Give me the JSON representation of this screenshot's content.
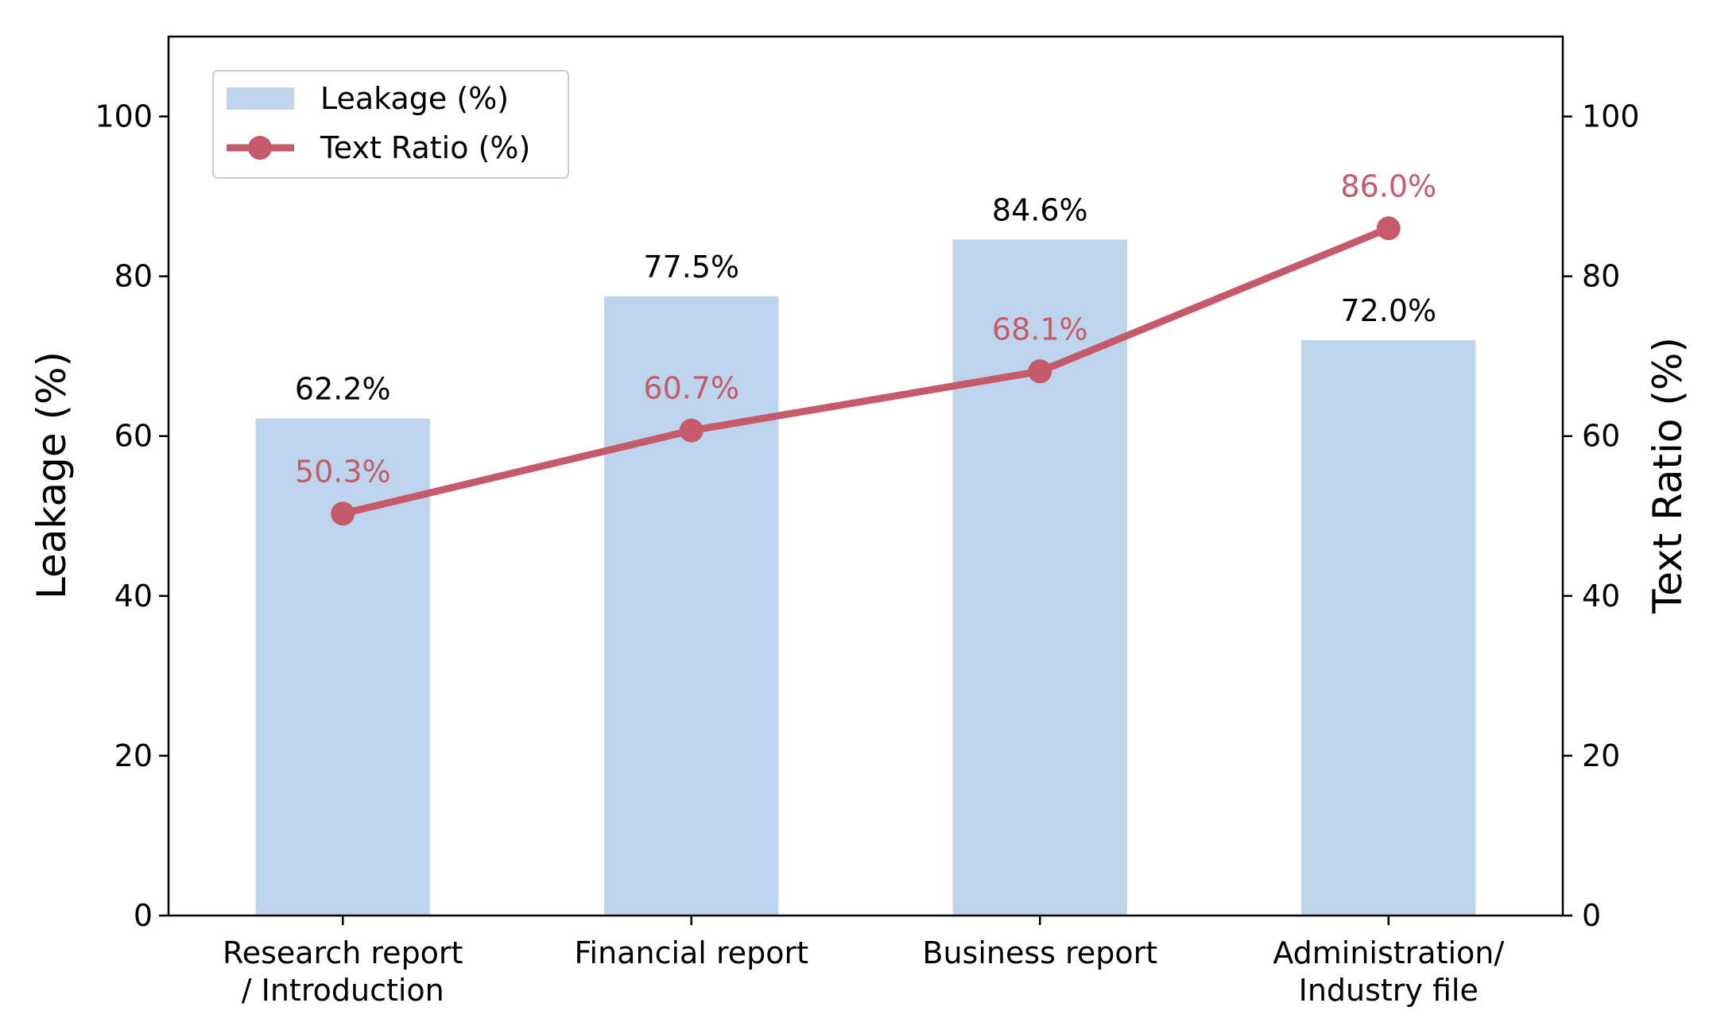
{
  "chart_data": {
    "type": "bar+line",
    "categories": [
      [
        "Research report",
        "/ Introduction"
      ],
      [
        "Financial report"
      ],
      [
        "Business report"
      ],
      [
        "Administration/",
        "Industry file"
      ]
    ],
    "series": [
      {
        "name": "Leakage (%)",
        "kind": "bar",
        "axis": "left",
        "values": [
          62.2,
          77.5,
          84.6,
          72.0
        ],
        "labels": [
          "62.2%",
          "77.5%",
          "84.6%",
          "72.0%"
        ]
      },
      {
        "name": "Text Ratio (%)",
        "kind": "line",
        "axis": "right",
        "values": [
          50.3,
          60.7,
          68.1,
          86.0
        ],
        "labels": [
          "50.3%",
          "60.7%",
          "68.1%",
          "86.0%"
        ]
      }
    ],
    "ylabel_left": "Leakage (%)",
    "ylabel_right": "Text Ratio (%)",
    "ylim": [
      0,
      110
    ],
    "yticks": [
      0,
      20,
      40,
      60,
      80,
      100
    ],
    "legend_position": "top-left",
    "grid": false,
    "colors": {
      "bar": "#bdd4ed",
      "line": "#c55a6a",
      "line_label": "#c55a6a"
    }
  }
}
